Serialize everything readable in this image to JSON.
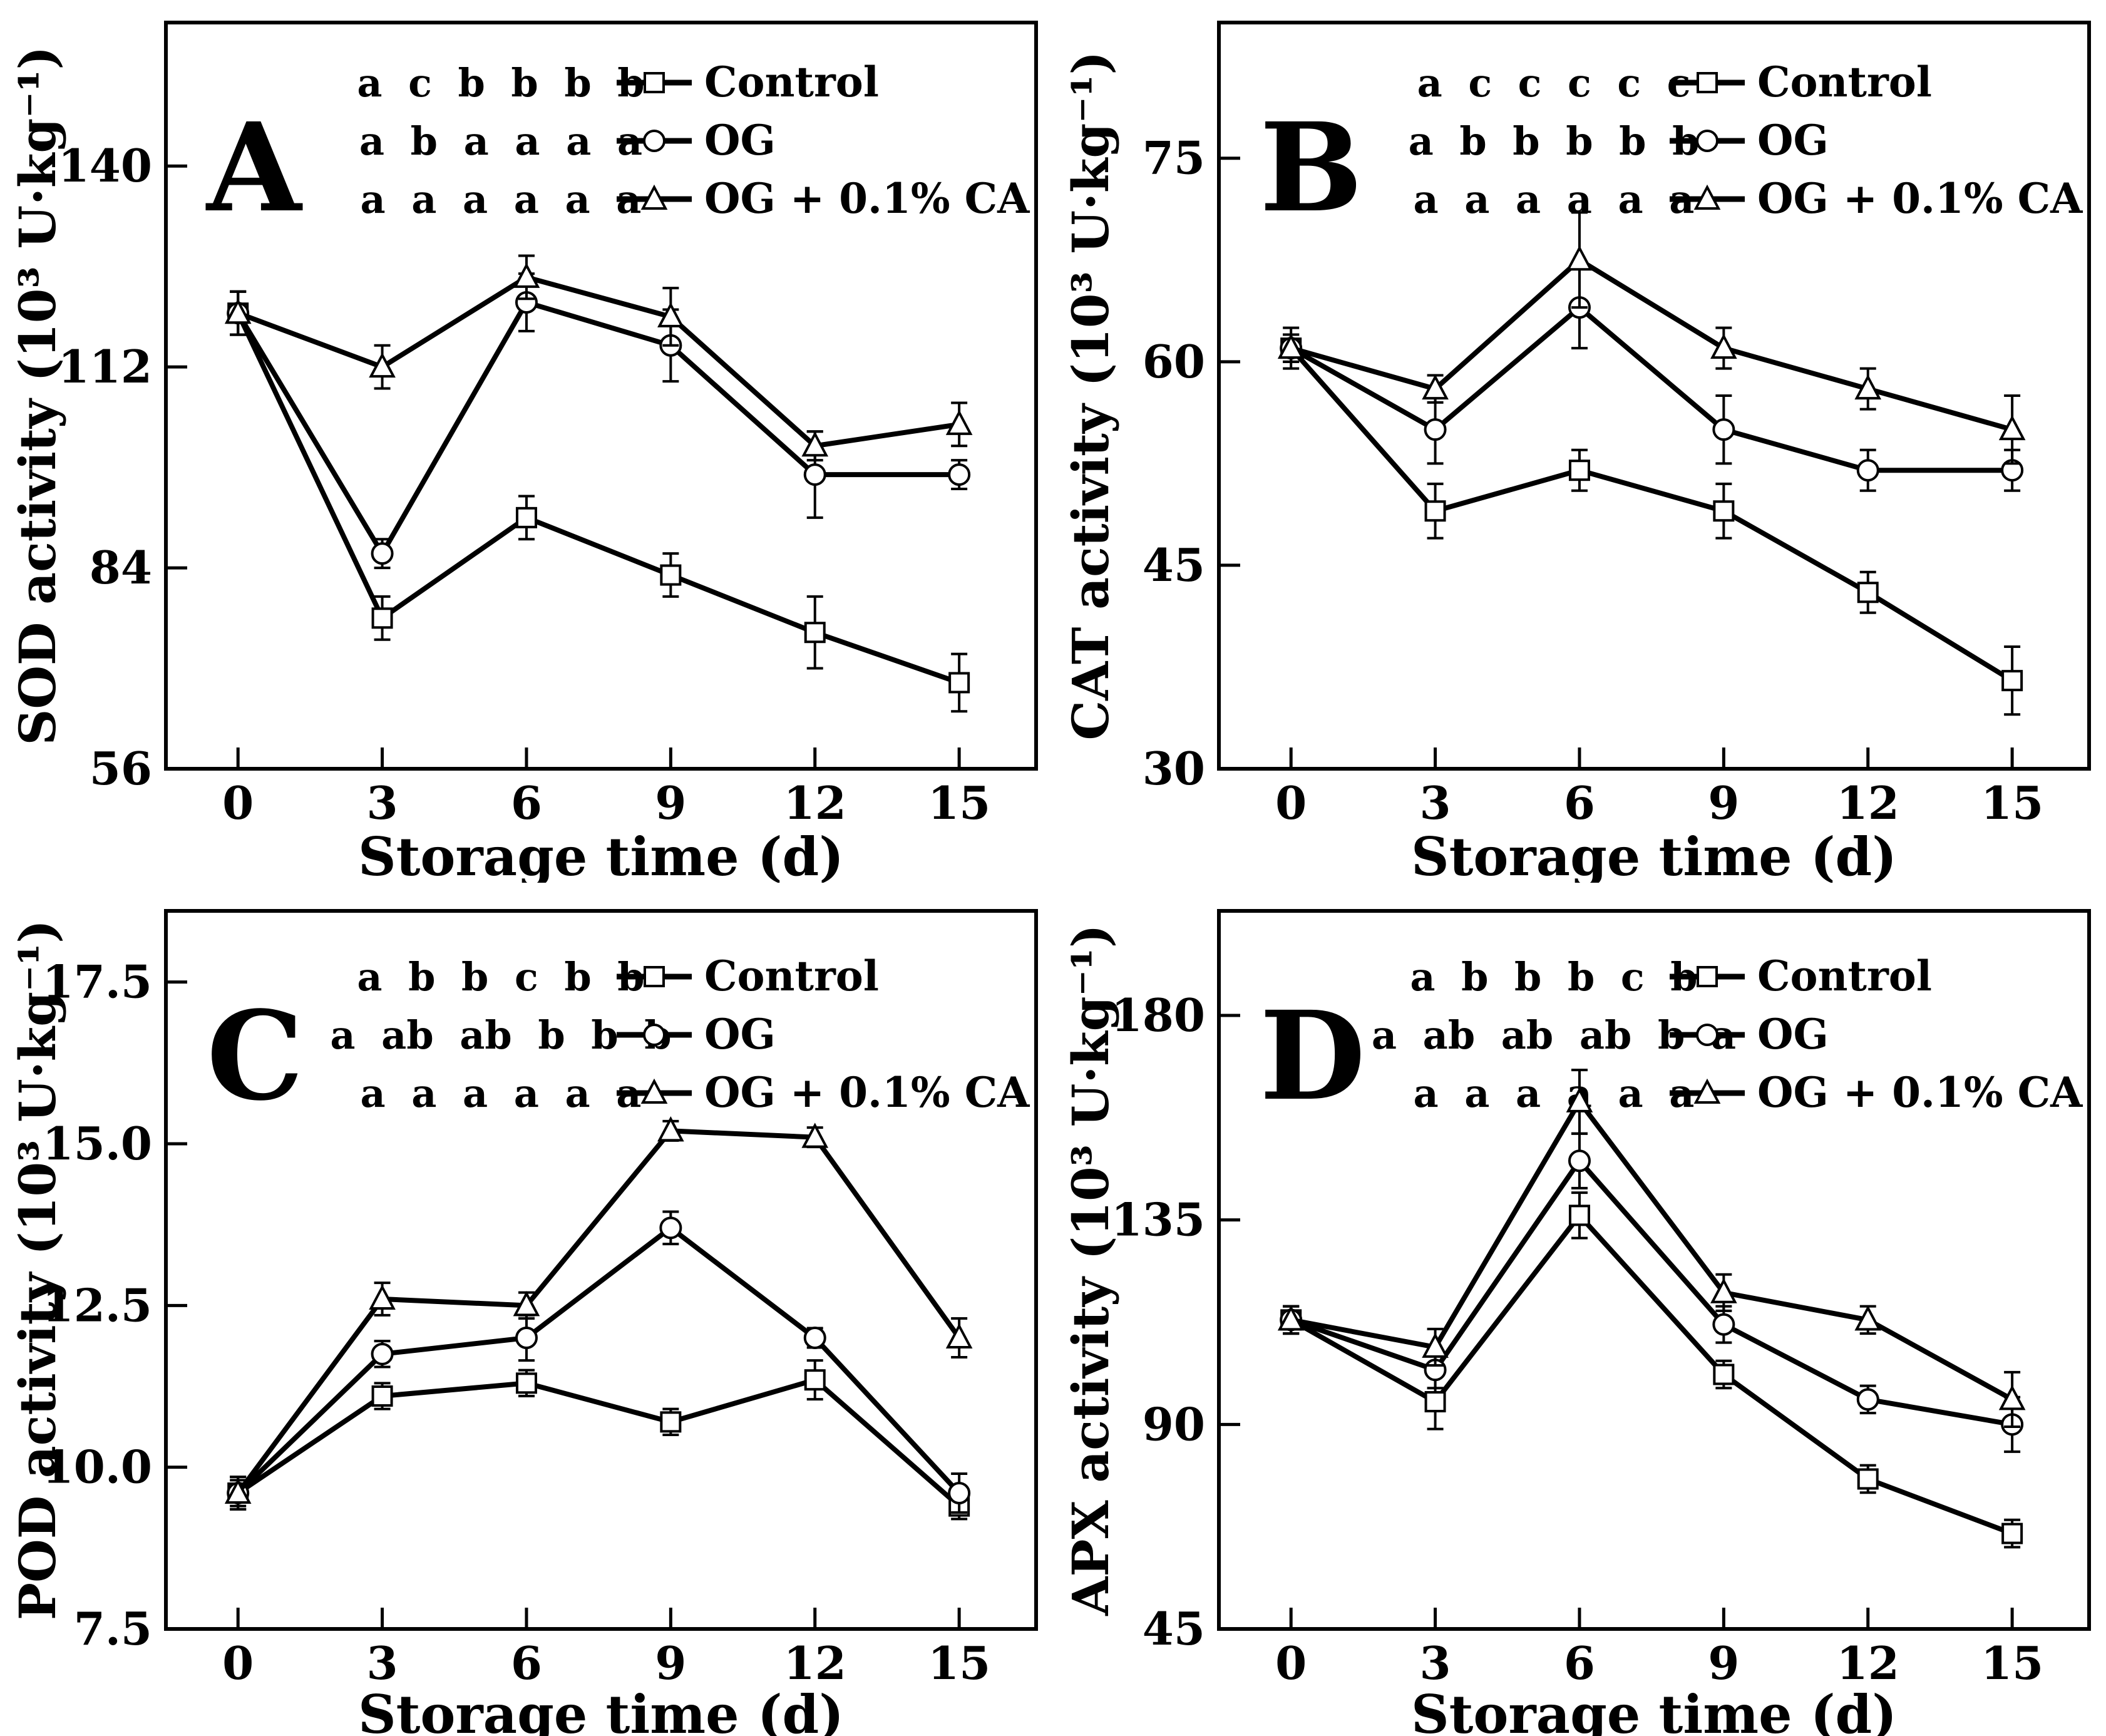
{
  "figure": {
    "background_color": "#ffffff",
    "stroke_color": "#000000",
    "description_visible_text_only": true
  },
  "chart_data": [
    {
      "type": "line",
      "panel_label": "A",
      "xlabel": "Storage time (d)",
      "ylabel": "SOD activity (10³ U·kg⁻¹)",
      "x": [
        0,
        3,
        6,
        9,
        12,
        15
      ],
      "xtick_labels": [
        "0",
        "3",
        "6",
        "9",
        "12",
        "15"
      ],
      "ytick_values": [
        56,
        84,
        112,
        140
      ],
      "ytick_labels": [
        "56",
        "84",
        "112",
        "140"
      ],
      "xlim": [
        -1.5,
        16.6
      ],
      "ylim": [
        56,
        160
      ],
      "grid": false,
      "legend_position": "top-center",
      "series": [
        {
          "name": "Control",
          "marker": "square",
          "sig_letters": "a c b b b b",
          "values": [
            119.5,
            77,
            91,
            83,
            75,
            68
          ],
          "errors": [
            3,
            3,
            3,
            3,
            5,
            4
          ]
        },
        {
          "name": "OG",
          "marker": "circle",
          "sig_letters": "a b a a a a",
          "values": [
            119.5,
            86,
            121,
            115,
            97,
            97
          ],
          "errors": [
            3,
            2,
            4,
            5,
            6,
            2
          ]
        },
        {
          "name": "OG + 0.1% CA",
          "marker": "triangle",
          "sig_letters": "a a a a a a",
          "values": [
            119.5,
            112,
            124.5,
            119,
            101,
            104
          ],
          "errors": [
            3,
            3,
            3,
            4,
            2,
            3
          ]
        }
      ]
    },
    {
      "type": "line",
      "panel_label": "B",
      "xlabel": "Storage time (d)",
      "ylabel": "CAT activity (10³ U·kg⁻¹)",
      "x": [
        0,
        3,
        6,
        9,
        12,
        15
      ],
      "xtick_labels": [
        "0",
        "3",
        "6",
        "9",
        "12",
        "15"
      ],
      "ytick_values": [
        30,
        45,
        60,
        75
      ],
      "ytick_labels": [
        "30",
        "45",
        "60",
        "75"
      ],
      "xlim": [
        -1.5,
        16.6
      ],
      "ylim": [
        30,
        85
      ],
      "grid": false,
      "legend_position": "top-center",
      "series": [
        {
          "name": "Control",
          "marker": "square",
          "sig_letters": "a c c c c c",
          "values": [
            61,
            49,
            52,
            49,
            43,
            36.5
          ],
          "errors": [
            1.5,
            2,
            1.5,
            2,
            1.5,
            2.5
          ]
        },
        {
          "name": "OG",
          "marker": "circle",
          "sig_letters": "a b b b b b",
          "values": [
            61,
            55,
            64,
            55,
            52,
            52
          ],
          "errors": [
            1,
            2.5,
            3,
            2.5,
            1.5,
            1.5
          ]
        },
        {
          "name": "OG + 0.1% CA",
          "marker": "triangle",
          "sig_letters": "a a a a a a",
          "values": [
            61,
            58,
            67.5,
            61,
            58,
            55
          ],
          "errors": [
            1,
            1,
            3.5,
            1.5,
            1.5,
            2.5
          ]
        }
      ]
    },
    {
      "type": "line",
      "panel_label": "C",
      "xlabel": "Storage time (d)",
      "ylabel": "POD activity (10³ U·kg⁻¹)",
      "x": [
        0,
        3,
        6,
        9,
        12,
        15
      ],
      "xtick_labels": [
        "0",
        "3",
        "6",
        "9",
        "12",
        "15"
      ],
      "ytick_values": [
        7.5,
        10.0,
        12.5,
        15.0,
        17.5
      ],
      "ytick_labels": [
        "7.5",
        "10.0",
        "12.5",
        "15.0",
        "17.5"
      ],
      "xlim": [
        -1.5,
        16.6
      ],
      "ylim": [
        7.5,
        18.6
      ],
      "grid": false,
      "legend_position": "top-center",
      "series": [
        {
          "name": "Control",
          "marker": "square",
          "sig_letters": "a b b c b b",
          "values": [
            9.6,
            11.1,
            11.3,
            10.7,
            11.35,
            9.4
          ],
          "errors": [
            0.25,
            0.2,
            0.2,
            0.2,
            0.3,
            0.2
          ]
        },
        {
          "name": "OG",
          "marker": "circle",
          "sig_letters": "a ab ab b b b",
          "values": [
            9.6,
            11.75,
            12.0,
            13.7,
            12.0,
            9.6
          ],
          "errors": [
            0.2,
            0.2,
            0.35,
            0.25,
            0.15,
            0.3
          ]
        },
        {
          "name": "OG + 0.1% CA",
          "marker": "triangle",
          "sig_letters": "a a a a a a",
          "values": [
            9.6,
            12.6,
            12.5,
            15.2,
            15.1,
            12.0
          ],
          "errors": [
            0.25,
            0.25,
            0.2,
            0.15,
            0.15,
            0.3
          ]
        }
      ]
    },
    {
      "type": "line",
      "panel_label": "D",
      "xlabel": "Storage time (d)",
      "ylabel": "APX activity (10³ U·kg⁻¹)",
      "x": [
        0,
        3,
        6,
        9,
        12,
        15
      ],
      "xtick_labels": [
        "0",
        "3",
        "6",
        "9",
        "12",
        "15"
      ],
      "ytick_values": [
        45,
        90,
        135,
        180
      ],
      "ytick_labels": [
        "45",
        "90",
        "135",
        "180"
      ],
      "xlim": [
        -1.5,
        16.6
      ],
      "ylim": [
        45,
        203
      ],
      "grid": false,
      "legend_position": "top-center",
      "series": [
        {
          "name": "Control",
          "marker": "square",
          "sig_letters": "a b b b c b",
          "values": [
            113,
            95,
            136,
            101,
            78,
            66
          ],
          "errors": [
            3,
            6,
            5,
            3,
            3,
            3
          ]
        },
        {
          "name": "OG",
          "marker": "circle",
          "sig_letters": "a ab ab ab b a",
          "values": [
            113,
            102,
            148,
            112,
            95.5,
            90
          ],
          "errors": [
            3,
            4,
            6,
            4,
            3,
            6
          ]
        },
        {
          "name": "OG + 0.1% CA",
          "marker": "triangle",
          "sig_letters": "a a a a a a",
          "values": [
            113,
            107,
            161,
            119,
            113,
            95.5
          ],
          "errors": [
            3,
            4,
            7,
            4,
            3,
            6
          ]
        }
      ]
    }
  ]
}
